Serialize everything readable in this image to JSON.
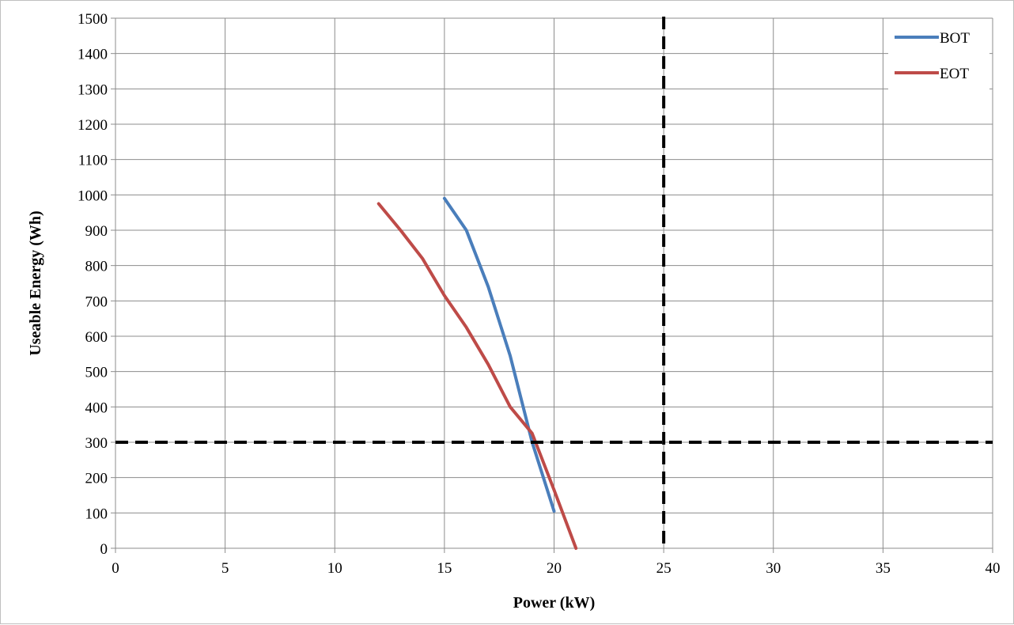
{
  "chart_data": {
    "type": "line",
    "title": "",
    "xlabel": "Power (kW)",
    "ylabel": "Useable Energy (Wh)",
    "xlim": [
      0,
      40
    ],
    "ylim": [
      0,
      1500
    ],
    "x_ticks": [
      0,
      5,
      10,
      15,
      20,
      25,
      30,
      35,
      40
    ],
    "y_ticks": [
      0,
      100,
      200,
      300,
      400,
      500,
      600,
      700,
      800,
      900,
      1000,
      1100,
      1200,
      1300,
      1400,
      1500
    ],
    "grid": true,
    "legend_position": "top-right",
    "series": [
      {
        "name": "BOT",
        "color": "#4a7ebb",
        "x": [
          15,
          16,
          17,
          18,
          19,
          20
        ],
        "y": [
          990,
          900,
          740,
          545,
          300,
          105
        ]
      },
      {
        "name": "EOT",
        "color": "#be4b48",
        "x": [
          12,
          13,
          14,
          15,
          16,
          17,
          18,
          19,
          20,
          21
        ],
        "y": [
          975,
          900,
          820,
          715,
          625,
          520,
          400,
          325,
          165,
          0
        ]
      }
    ],
    "reference_lines": [
      {
        "orientation": "horizontal",
        "value": 300,
        "color": "#000000"
      },
      {
        "orientation": "vertical",
        "value": 25,
        "color": "#000000"
      }
    ]
  }
}
